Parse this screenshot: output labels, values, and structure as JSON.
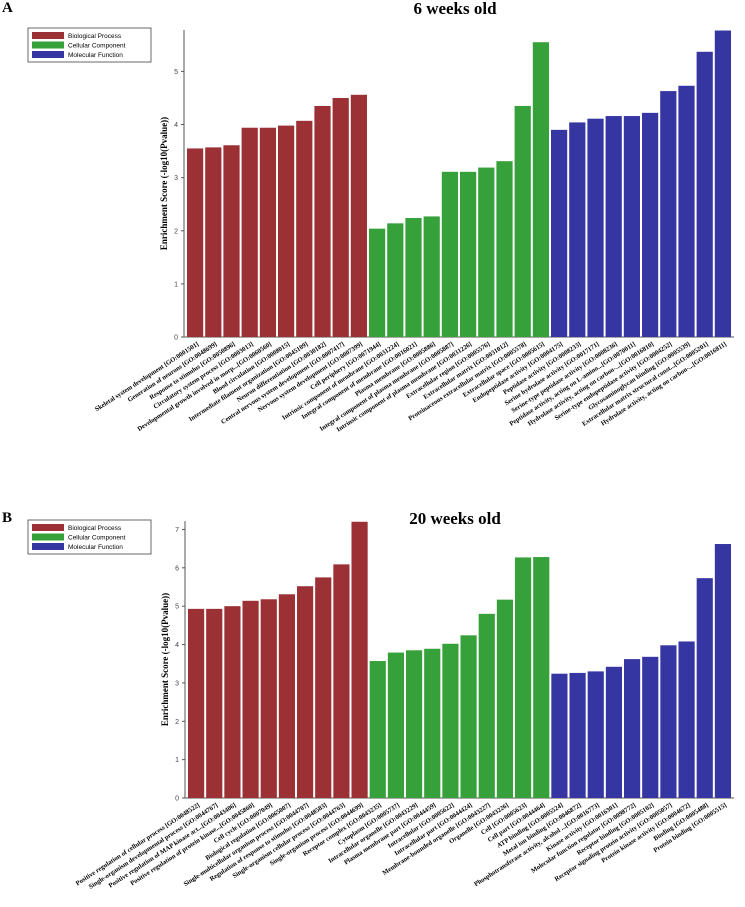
{
  "colors": {
    "Biological Process": "#9b3134",
    "Cellular Component": "#36a03a",
    "Molecular Function": "#3636a2"
  },
  "chart_data": [
    {
      "panel": "A",
      "type": "bar",
      "title": "6 weeks old",
      "xlabel": "",
      "ylabel": "Enrichment Score (-log10(Pvalue))",
      "ylim": [
        0,
        5.78
      ],
      "yticks": [
        0,
        1,
        2,
        3,
        4,
        5
      ],
      "legend": [
        "Biological Process",
        "Cellular Component",
        "Molecular Function"
      ],
      "legend_position": "top-left",
      "categories": [
        "Skeletal system development [GO:0001501]",
        "Generation of neurons [GO:0048699]",
        "Response to stimulus [GO:0050896]",
        "Circulatory system process [GO:0003013]",
        "Developmental growth involved in morp...[GO:0060560]",
        "Blood circulation [GO:0008015]",
        "Intermediate filament organization [GO:0045109]",
        "Neuron differentiation [GO:0030182]",
        "Central nervous system development [GO:0007417]",
        "Nervous system development [GO:0007399]",
        "Cell periphery [GO:0071944]",
        "Intrinsic component of membrane [GO:0031224]",
        "Integral component of membrane [GO:0016021]",
        "Plasma membrane [GO:0005886]",
        "Integral component of plasma membrane [GO:0005887]",
        "Intrinsic component of plasma membrane [GO:0031226]",
        "Extracellular region [GO:0005576]",
        "Extracellular matrix [GO:0031012]",
        "Proteinaceous extracellular matrix [GO:0005578]",
        "Extracellular space [GO:0005615]",
        "Endopeptidase activity [GO:0004175]",
        "Peptidase activity [GO:0008233]",
        "Serine hydrolase activity [GO:0017171]",
        "Serine-type peptidase activity [GO:0008236]",
        "Peptidase activity, acting on L-amino...[GO:0070011]",
        "Hydrolase activity, acting on carbon-...[GO:0016810]",
        "Serine-type endopeptidase activity [GO:0004252]",
        "Glycosaminoglycan binding [GO:0005539]",
        "Extracellular matrix structural const...[GO:0005201]",
        "Hydrolase activity, acting on carbon-...[GO:0016811]"
      ],
      "groups": [
        "Biological Process",
        "Biological Process",
        "Biological Process",
        "Biological Process",
        "Biological Process",
        "Biological Process",
        "Biological Process",
        "Biological Process",
        "Biological Process",
        "Biological Process",
        "Cellular Component",
        "Cellular Component",
        "Cellular Component",
        "Cellular Component",
        "Cellular Component",
        "Cellular Component",
        "Cellular Component",
        "Cellular Component",
        "Cellular Component",
        "Cellular Component",
        "Molecular Function",
        "Molecular Function",
        "Molecular Function",
        "Molecular Function",
        "Molecular Function",
        "Molecular Function",
        "Molecular Function",
        "Molecular Function",
        "Molecular Function",
        "Molecular Function"
      ],
      "values": [
        3.55,
        3.57,
        3.61,
        3.94,
        3.94,
        3.98,
        4.07,
        4.35,
        4.5,
        4.56,
        2.04,
        2.14,
        2.24,
        2.27,
        3.11,
        3.11,
        3.19,
        3.31,
        4.35,
        5.55,
        3.9,
        4.04,
        4.11,
        4.16,
        4.16,
        4.22,
        4.63,
        4.73,
        5.37,
        5.77
      ]
    },
    {
      "panel": "B",
      "type": "bar",
      "title": "20 weeks old",
      "xlabel": "",
      "ylabel": "Enrichment Score (-log10(Pvalue))",
      "ylim": [
        0,
        7.22
      ],
      "yticks": [
        0,
        1,
        2,
        3,
        4,
        5,
        6,
        7
      ],
      "legend": [
        "Biological Process",
        "Cellular Component",
        "Molecular Function"
      ],
      "legend_position": "top-left",
      "categories": [
        "Positive regulation of cellular process [GO:0048522]",
        "Single-organism developmental process [GO:0044767]",
        "Positive regulation of MAP kinase act...[GO:0043406]",
        "Positive regulation of protein kinase...[GO:0045860]",
        "Cell cycle [GO:0007049]",
        "Biological regulation [GO:0065007]",
        "Single-multicellular organism process [GO:0044707]",
        "Regulation of response to stimulus [GO:0048583]",
        "Single-organism cellular process [GO:0044763]",
        "Single-organism process [GO:0044699]",
        "Receptor complex [GO:0043235]",
        "Cytoplasm [GO:0005737]",
        "Intracellular organelle [GO:0043229]",
        "Plasma membrane part [GO:0044459]",
        "Intracellular [GO:0005622]",
        "Intracellular part [GO:0044424]",
        "Membrane-bounded organelle [GO:0043227]",
        "Organelle [GO:0043226]",
        "Cell [GO:0005623]",
        "Cell part [GO:0044464]",
        "ATP binding [GO:0005524]",
        "Metal ion binding [GO:0046872]",
        "Phosphotransferase activity, alcohol ...[GO:0016773]",
        "Kinase activity [GO:0016301]",
        "Molecular function regulator [GO:0098772]",
        "Receptor binding [GO:0005102]",
        "Receptor signaling protein activity [GO:0005057]",
        "Protein kinase activity [GO:0004672]",
        "Binding [GO:0005488]",
        "Protein binding [GO:0005515]"
      ],
      "groups": [
        "Biological Process",
        "Biological Process",
        "Biological Process",
        "Biological Process",
        "Biological Process",
        "Biological Process",
        "Biological Process",
        "Biological Process",
        "Biological Process",
        "Biological Process",
        "Cellular Component",
        "Cellular Component",
        "Cellular Component",
        "Cellular Component",
        "Cellular Component",
        "Cellular Component",
        "Cellular Component",
        "Cellular Component",
        "Cellular Component",
        "Cellular Component",
        "Molecular Function",
        "Molecular Function",
        "Molecular Function",
        "Molecular Function",
        "Molecular Function",
        "Molecular Function",
        "Molecular Function",
        "Molecular Function",
        "Molecular Function",
        "Molecular Function"
      ],
      "values": [
        4.93,
        4.93,
        5.0,
        5.14,
        5.18,
        5.31,
        5.52,
        5.75,
        6.09,
        7.2,
        3.57,
        3.79,
        3.85,
        3.89,
        4.02,
        4.24,
        4.8,
        5.17,
        6.27,
        6.28,
        3.24,
        3.26,
        3.3,
        3.42,
        3.62,
        3.68,
        3.98,
        4.08,
        5.73,
        6.62
      ]
    }
  ]
}
